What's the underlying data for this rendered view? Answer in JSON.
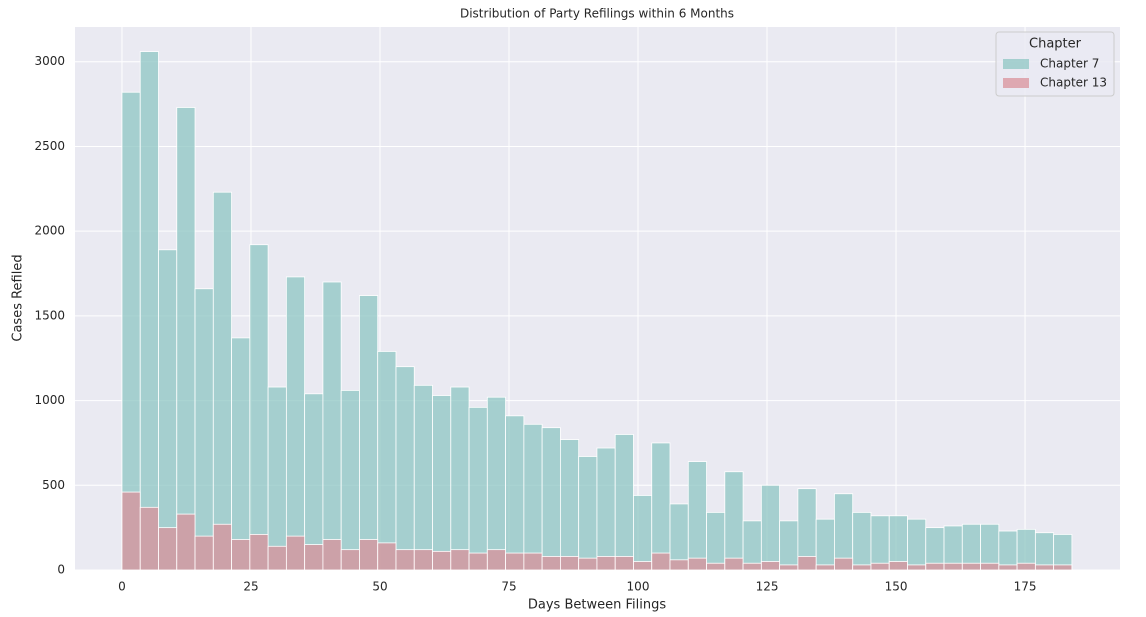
{
  "chart_data": {
    "type": "histogram",
    "title": "Distribution of Party Refilings within 6 Months",
    "x_label": "Days Between Filings",
    "y_label": "Cases Refiled",
    "legend_title": "Chapter",
    "legend_position": "upper right",
    "grid": true,
    "bins": [
      0,
      3.54,
      7.08,
      10.62,
      14.16,
      17.7,
      21.24,
      24.78,
      28.32,
      31.86,
      35.4,
      38.94,
      42.48,
      46.02,
      49.56,
      53.1,
      56.64,
      60.18,
      63.72,
      67.26,
      70.8,
      74.34,
      77.88,
      81.42,
      84.96,
      88.5,
      92.04,
      95.58,
      99.12,
      102.66,
      106.2,
      109.74,
      113.28,
      116.82,
      120.36,
      123.9,
      127.44,
      130.98,
      134.52,
      138.06,
      141.6,
      145.14,
      148.68,
      152.22,
      155.76,
      159.3,
      162.84,
      166.38,
      169.92,
      173.46,
      177,
      180.54,
      184.08
    ],
    "series": [
      {
        "name": "Chapter 7",
        "color": "#8dc6c3",
        "values": [
          2820,
          3060,
          1890,
          2730,
          1660,
          2230,
          1370,
          1920,
          1080,
          1730,
          1040,
          1700,
          1060,
          1620,
          1290,
          1200,
          1090,
          1030,
          1080,
          960,
          1020,
          910,
          860,
          840,
          770,
          670,
          720,
          800,
          440,
          750,
          390,
          640,
          340,
          580,
          290,
          500,
          290,
          480,
          300,
          450,
          340,
          320,
          320,
          300,
          250,
          260,
          270,
          270,
          230,
          240,
          220,
          210
        ]
      },
      {
        "name": "Chapter 13",
        "color": "#d9919b",
        "values": [
          460,
          370,
          250,
          330,
          200,
          270,
          180,
          210,
          140,
          200,
          150,
          180,
          120,
          180,
          160,
          120,
          120,
          110,
          120,
          100,
          120,
          100,
          100,
          80,
          80,
          70,
          80,
          80,
          50,
          100,
          60,
          70,
          40,
          70,
          40,
          50,
          30,
          80,
          30,
          70,
          30,
          40,
          50,
          30,
          40,
          40,
          40,
          40,
          30,
          40,
          30,
          30
        ]
      }
    ],
    "xlim": [
      -9.1,
      193.4
    ],
    "xticks": [
      0,
      25,
      50,
      75,
      100,
      125,
      150,
      175
    ],
    "ylim": [
      0,
      3205
    ],
    "yticks": [
      0,
      500,
      1000,
      1500,
      2000,
      2500,
      3000
    ]
  }
}
